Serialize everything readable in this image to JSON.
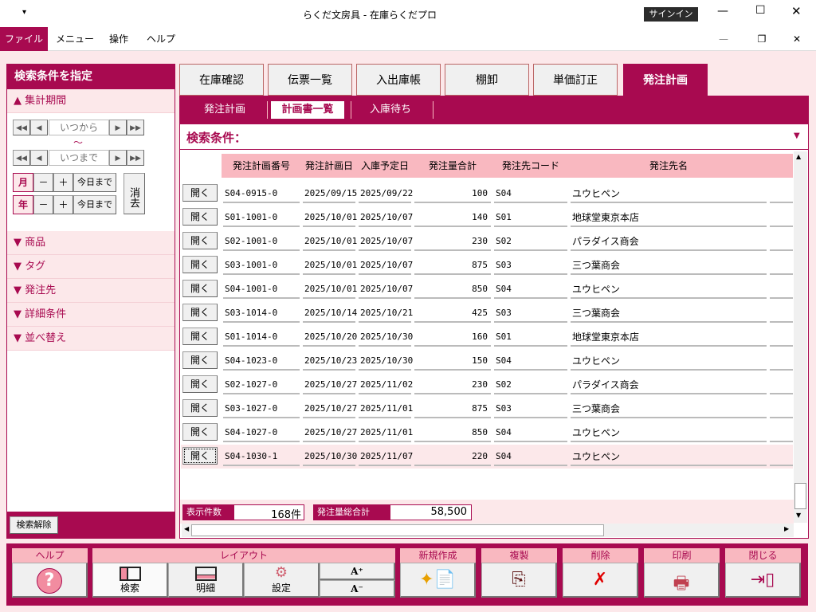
{
  "window": {
    "title": "らくだ文房具 - 在庫らくだプロ",
    "signin": "サインイン",
    "qat": "▾"
  },
  "menu": [
    "ファイル",
    "メニュー",
    "操作",
    "ヘルプ"
  ],
  "left": {
    "header": "検索条件を指定",
    "period": "集計期間",
    "from_placeholder": "いつから",
    "tilde": "～",
    "to_placeholder": "いつまで",
    "month": "月",
    "year": "年",
    "minus": "－",
    "plus": "＋",
    "today": "今日まで",
    "clear": "消去",
    "sections": [
      "商品",
      "タグ",
      "発注先",
      "詳細条件",
      "並べ替え"
    ],
    "reset": "検索解除"
  },
  "tabs": [
    {
      "label": "在庫確認"
    },
    {
      "label": "伝票一覧"
    },
    {
      "label": "入出庫帳"
    },
    {
      "label": "棚卸"
    },
    {
      "label": "単価訂正"
    },
    {
      "label": "発注計画",
      "active": true
    }
  ],
  "subtabs": [
    {
      "label": "発注計画"
    },
    {
      "label": "計画書一覧",
      "active": true
    },
    {
      "label": "入庫待ち"
    }
  ],
  "search_label": "検索条件：",
  "grid": {
    "open_label": "開く",
    "columns": [
      "発注計画番号",
      "発注計画日",
      "入庫予定日",
      "発注量合計",
      "発注先コード",
      "発注先名"
    ],
    "rows": [
      [
        "S04-0915-0",
        "2025/09/15",
        "2025/09/22",
        "100",
        "S04",
        "ユウヒペン"
      ],
      [
        "S01-1001-0",
        "2025/10/01",
        "2025/10/07",
        "140",
        "S01",
        "地球堂東京本店"
      ],
      [
        "S02-1001-0",
        "2025/10/01",
        "2025/10/07",
        "230",
        "S02",
        "パラダイス商会"
      ],
      [
        "S03-1001-0",
        "2025/10/01",
        "2025/10/07",
        "875",
        "S03",
        "三つ葉商会"
      ],
      [
        "S04-1001-0",
        "2025/10/01",
        "2025/10/07",
        "850",
        "S04",
        "ユウヒペン"
      ],
      [
        "S03-1014-0",
        "2025/10/14",
        "2025/10/21",
        "425",
        "S03",
        "三つ葉商会"
      ],
      [
        "S01-1014-0",
        "2025/10/20",
        "2025/10/30",
        "160",
        "S01",
        "地球堂東京本店"
      ],
      [
        "S04-1023-0",
        "2025/10/23",
        "2025/10/30",
        "150",
        "S04",
        "ユウヒペン"
      ],
      [
        "S02-1027-0",
        "2025/10/27",
        "2025/11/02",
        "230",
        "S02",
        "パラダイス商会"
      ],
      [
        "S03-1027-0",
        "2025/10/27",
        "2025/11/01",
        "875",
        "S03",
        "三つ葉商会"
      ],
      [
        "S04-1027-0",
        "2025/10/27",
        "2025/11/01",
        "850",
        "S04",
        "ユウヒペン"
      ],
      [
        "S04-1030-1",
        "2025/10/30",
        "2025/11/07",
        "220",
        "S04",
        "ユウヒペン"
      ]
    ]
  },
  "summary": {
    "count_label": "表示件数",
    "count": "168件",
    "total_label": "発注量総合計",
    "total": "58,500"
  },
  "toolbar": {
    "help": "ヘルプ",
    "layout": "レイアウト",
    "search": "検索",
    "detail": "明細",
    "settings": "設定",
    "font_up": "A⁺",
    "font_down": "A⁻",
    "new": "新規作成",
    "copy": "複製",
    "delete": "削除",
    "print": "印刷",
    "close": "閉じる"
  },
  "colors": {
    "accent": "#a80a50",
    "header_pink": "#f9b8c0",
    "bg": "#fce8ea"
  }
}
